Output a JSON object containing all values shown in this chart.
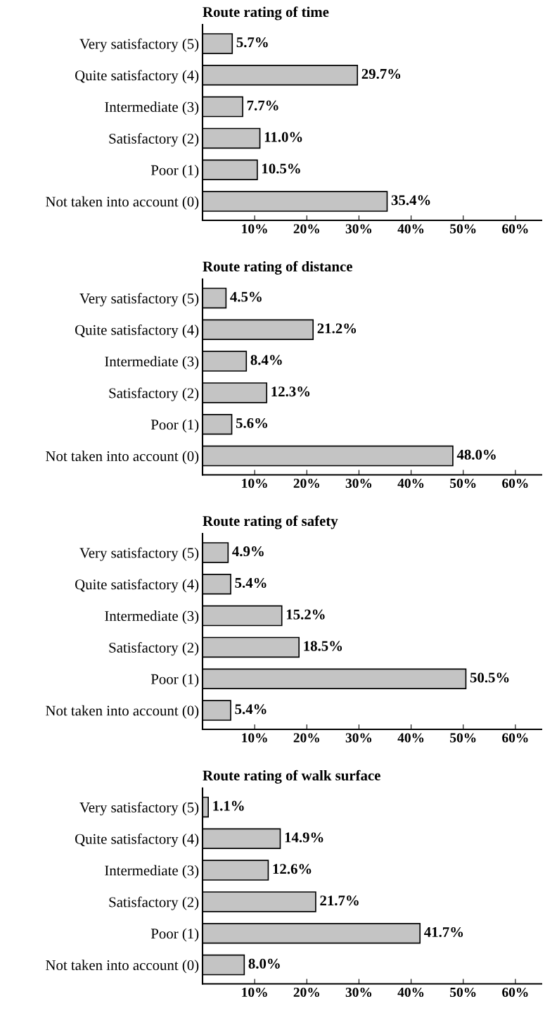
{
  "chart_data": [
    {
      "type": "bar",
      "orientation": "horizontal",
      "title": "Route rating of time",
      "categories": [
        "Very satisfactory (5)",
        "Quite satisfactory (4)",
        "Intermediate (3)",
        "Satisfactory (2)",
        "Poor (1)",
        "Not taken into account (0)"
      ],
      "values": [
        5.7,
        29.7,
        7.7,
        11.0,
        10.5,
        35.4
      ],
      "value_labels": [
        "5.7%",
        "29.7%",
        "7.7%",
        "11.0%",
        "10.5%",
        "35.4%"
      ],
      "color": "#c4c4c4",
      "xlim": [
        0,
        65
      ],
      "xticks": [
        {
          "value": 10,
          "label": "10%"
        },
        {
          "value": 20,
          "label": "20%"
        },
        {
          "value": 30,
          "label": "30%"
        },
        {
          "value": 40,
          "label": "40%"
        },
        {
          "value": 50,
          "label": "50%"
        },
        {
          "value": 60,
          "label": "60%"
        }
      ],
      "grid": false,
      "legend": false
    },
    {
      "type": "bar",
      "orientation": "horizontal",
      "title": "Route rating of distance",
      "categories": [
        "Very satisfactory (5)",
        "Quite satisfactory (4)",
        "Intermediate (3)",
        "Satisfactory (2)",
        "Poor (1)",
        "Not taken into account (0)"
      ],
      "values": [
        4.5,
        21.2,
        8.4,
        12.3,
        5.6,
        48.0
      ],
      "value_labels": [
        "4.5%",
        "21.2%",
        "8.4%",
        "12.3%",
        "5.6%",
        "48.0%"
      ],
      "color": "#c4c4c4",
      "xlim": [
        0,
        65
      ],
      "xticks": [
        {
          "value": 10,
          "label": "10%"
        },
        {
          "value": 20,
          "label": "20%"
        },
        {
          "value": 30,
          "label": "30%"
        },
        {
          "value": 40,
          "label": "40%"
        },
        {
          "value": 50,
          "label": "50%"
        },
        {
          "value": 60,
          "label": "60%"
        }
      ],
      "grid": false,
      "legend": false
    },
    {
      "type": "bar",
      "orientation": "horizontal",
      "title": "Route rating of safety",
      "categories": [
        "Very satisfactory (5)",
        "Quite satisfactory (4)",
        "Intermediate (3)",
        "Satisfactory (2)",
        "Poor (1)",
        "Not taken into account (0)"
      ],
      "values": [
        4.9,
        5.4,
        15.2,
        18.5,
        50.5,
        5.4
      ],
      "value_labels": [
        "4.9%",
        "5.4%",
        "15.2%",
        "18.5%",
        "50.5%",
        "5.4%"
      ],
      "color": "#c4c4c4",
      "xlim": [
        0,
        65
      ],
      "xticks": [
        {
          "value": 10,
          "label": "10%"
        },
        {
          "value": 20,
          "label": "20%"
        },
        {
          "value": 30,
          "label": "30%"
        },
        {
          "value": 40,
          "label": "40%"
        },
        {
          "value": 50,
          "label": "50%"
        },
        {
          "value": 60,
          "label": "60%"
        }
      ],
      "grid": false,
      "legend": false
    },
    {
      "type": "bar",
      "orientation": "horizontal",
      "title": "Route rating of walk surface",
      "categories": [
        "Very satisfactory (5)",
        "Quite satisfactory (4)",
        "Intermediate (3)",
        "Satisfactory (2)",
        "Poor (1)",
        "Not taken into account (0)"
      ],
      "values": [
        1.1,
        14.9,
        12.6,
        21.7,
        41.7,
        8.0
      ],
      "value_labels": [
        "1.1%",
        "14.9%",
        "12.6%",
        "21.7%",
        "41.7%",
        "8.0%"
      ],
      "color": "#c4c4c4",
      "xlim": [
        0,
        65
      ],
      "xticks": [
        {
          "value": 10,
          "label": "10%"
        },
        {
          "value": 20,
          "label": "20%"
        },
        {
          "value": 30,
          "label": "30%"
        },
        {
          "value": 40,
          "label": "40%"
        },
        {
          "value": 50,
          "label": "50%"
        },
        {
          "value": 60,
          "label": "60%"
        }
      ],
      "grid": false,
      "legend": false
    }
  ]
}
